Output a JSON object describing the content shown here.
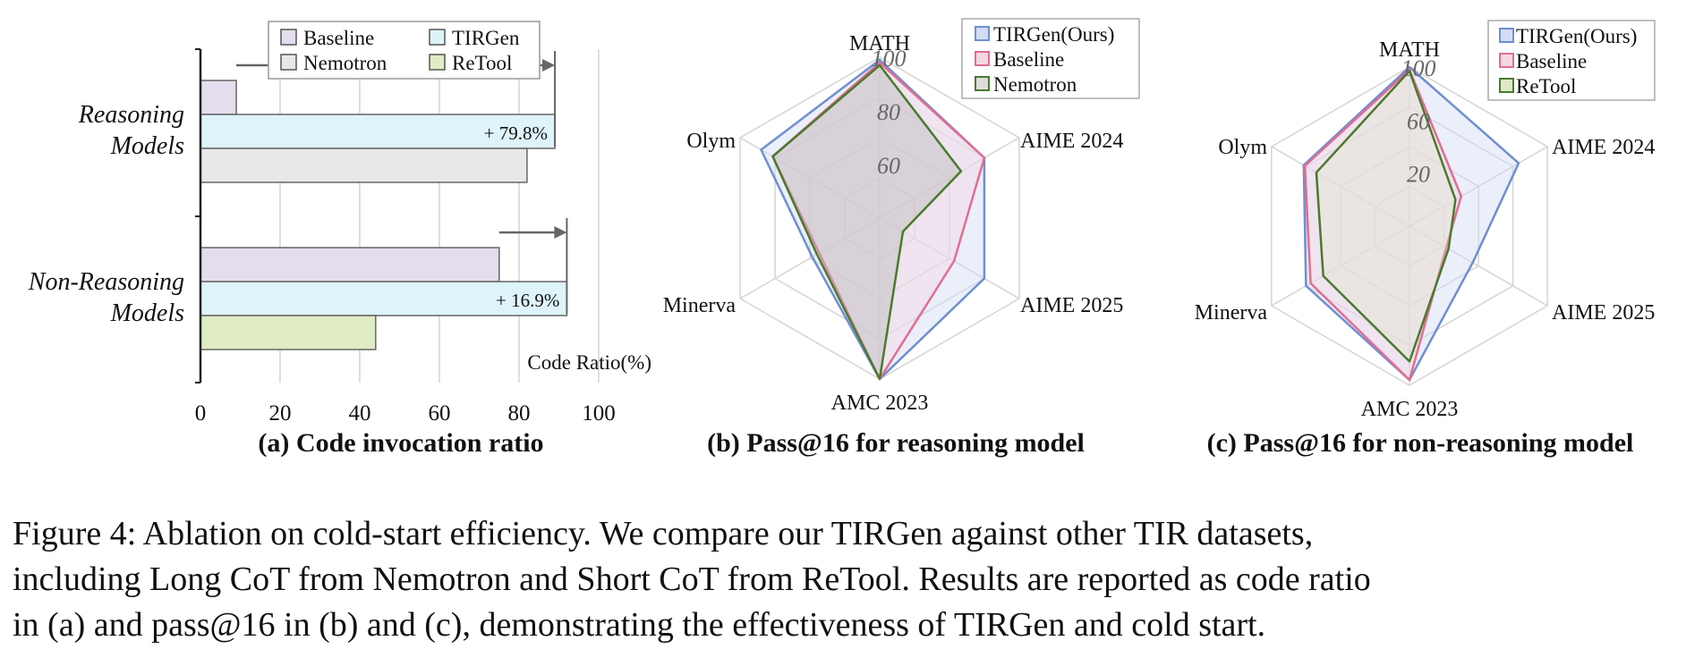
{
  "colors": {
    "tirgen": "#6f8fd0",
    "tirgen_fill": "#d3dcf3",
    "baseline": "#e26d92",
    "baseline_fill": "#f4d7e2",
    "nemotron": "#4a7a2d",
    "nemotron_fill": "#c9c9c9",
    "bar_baseline": "#e4dded",
    "bar_tirgen": "#def3fa",
    "bar_nemotron": "#e8e8e8",
    "bar_retool": "#dfecc5",
    "bar_stroke": "#666666",
    "grid": "#d4d4d4",
    "arrow": "#666666"
  },
  "chart_data": [
    {
      "type": "bar",
      "orientation": "horizontal",
      "subtitle": "(a) Code invocation ratio",
      "xlabel": "Code Ratio(%)",
      "xlim": [
        0,
        100
      ],
      "xticks": [
        "0",
        "20",
        "40",
        "60",
        "80",
        "100"
      ],
      "legend": [
        "Baseline",
        "TIRGen",
        "Nemotron",
        "ReTool"
      ],
      "groups": [
        {
          "label_line1": "Reasoning",
          "label_line2": "Models",
          "bars": [
            {
              "series": "Baseline",
              "value": 9
            },
            {
              "series": "TIRGen",
              "value": 89
            },
            {
              "series": "Nemotron",
              "value": 82
            }
          ],
          "arrow_from": 9,
          "arrow_to": 89,
          "annotation": "+ 79.8%"
        },
        {
          "label_line1": "Non-Reasoning",
          "label_line2": "Models",
          "bars": [
            {
              "series": "Baseline",
              "value": 75
            },
            {
              "series": "TIRGen",
              "value": 92
            },
            {
              "series": "ReTool",
              "value": 44
            }
          ],
          "arrow_from": 75,
          "arrow_to": 92,
          "annotation": "+ 16.9%"
        }
      ]
    },
    {
      "type": "radar",
      "subtitle": "(b) Pass@16 for reasoning model",
      "axes": [
        "MATH",
        "AIME 2024",
        "AIME 2025",
        "AMC 2023",
        "Minerva",
        "Olym"
      ],
      "rlim": [
        40,
        100
      ],
      "rticks": [
        "60",
        "80",
        "100"
      ],
      "series": [
        {
          "name": "TIRGen(Ours)",
          "values": [
            99,
            85,
            85,
            100,
            69,
            91
          ]
        },
        {
          "name": "Baseline",
          "values": [
            98,
            85,
            72,
            100,
            66,
            86
          ]
        },
        {
          "name": "Nemotron",
          "values": [
            97,
            75,
            50,
            100,
            67,
            86
          ]
        }
      ]
    },
    {
      "type": "radar",
      "subtitle": "(c) Pass@16 for non-reasoning model",
      "axes": [
        "MATH",
        "AIME 2024",
        "AIME 2025",
        "AMC 2023",
        "Minerva",
        "Olym"
      ],
      "rlim": [
        -20,
        100
      ],
      "rticks": [
        "20",
        "60",
        "100"
      ],
      "series": [
        {
          "name": "TIRGen(Ours)",
          "values": [
            100,
            75,
            35,
            96,
            70,
            72
          ]
        },
        {
          "name": "Baseline",
          "values": [
            98,
            25,
            12,
            96,
            66,
            71
          ]
        },
        {
          "name": "ReTool",
          "values": [
            97,
            20,
            14,
            82,
            55,
            61
          ]
        }
      ]
    }
  ],
  "caption": {
    "line1": "Figure 4:  Ablation on cold-start efficiency.  We compare our TIRGen against other TIR datasets,",
    "line2": "including Long CoT from Nemotron and Short CoT from ReTool. Results are reported as code ratio",
    "line3": "in (a) and pass@16 in (b) and (c), demonstrating the effectiveness of TIRGen and cold start."
  }
}
